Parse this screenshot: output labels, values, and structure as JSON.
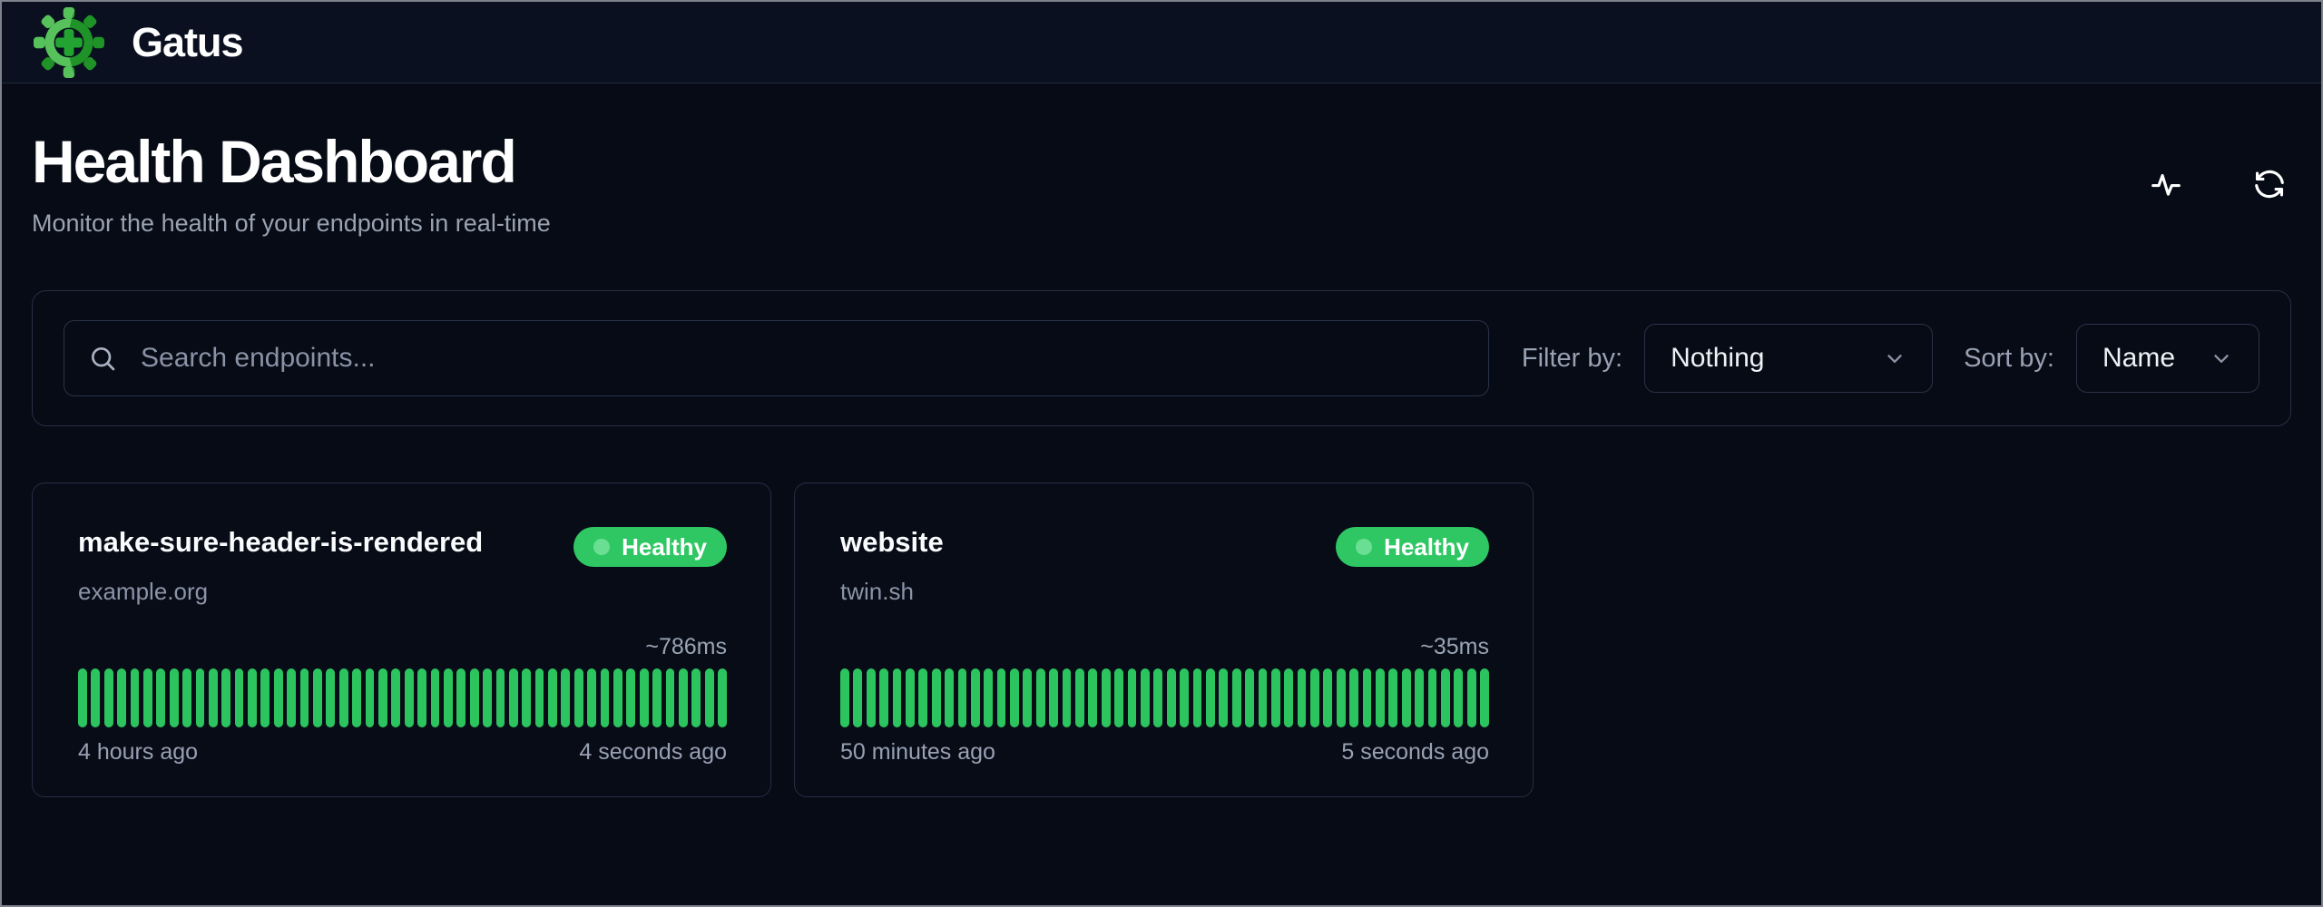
{
  "app": {
    "name": "Gatus"
  },
  "page": {
    "title": "Health Dashboard",
    "subtitle": "Monitor the health of your endpoints in real-time"
  },
  "toolbar": {
    "search_placeholder": "Search endpoints...",
    "filter_label": "Filter by:",
    "filter_value": "Nothing",
    "sort_label": "Sort by:",
    "sort_value": "Name"
  },
  "icons": {
    "logo": "gatus-gear-plus-icon",
    "activity": "activity-pulse-icon",
    "refresh": "refresh-icon",
    "search": "search-icon",
    "chevron": "chevron-down-icon"
  },
  "colors": {
    "page_bg": "#060b15",
    "appbar_bg": "#0a101f",
    "border": "#272f45",
    "healthy_green": "#2fc763",
    "bar_green": "#2cc45e",
    "muted_text": "#98a1b3",
    "logo_light_green": "#57c25b",
    "logo_dark_green": "#1f9327"
  },
  "endpoints": [
    {
      "name": "make-sure-header-is-rendered",
      "status": "Healthy",
      "host": "example.org",
      "avg_response": "~786ms",
      "oldest_label": "4 hours ago",
      "newest_label": "4 seconds ago",
      "bar_count": 50,
      "bars_all_status": "up"
    },
    {
      "name": "website",
      "status": "Healthy",
      "host": "twin.sh",
      "avg_response": "~35ms",
      "oldest_label": "50 minutes ago",
      "newest_label": "5 seconds ago",
      "bar_count": 50,
      "bars_all_status": "up"
    }
  ]
}
